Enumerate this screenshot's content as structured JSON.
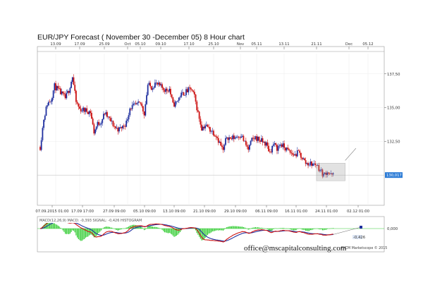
{
  "page": {
    "title": "EUR/JPY Forecast ( November 30 -December 05) 8 Hour chart"
  },
  "footer": {
    "watermark": "office@mscapitalconsulting.com",
    "vendor": "FXCM Marketscope © 2015"
  },
  "chart_data": [
    {
      "type": "candlestick",
      "title": "EUR/JPY Forecast ( November 30 -December 05) 8 Hour chart",
      "symbol": "EUR/JPY",
      "ylim": [
        128.2,
        139.0
      ],
      "price_ticks": [
        "137,50",
        "135,00",
        "132,50"
      ],
      "current_price": "130,017",
      "top_ticks": [
        "13.09",
        "17.09",
        "25.09",
        "Oct",
        "05.10",
        "09.10",
        "17.10",
        "25.10",
        "Nov",
        "05.11",
        "13.11",
        "21.11",
        "Dec",
        "05.12"
      ],
      "bottom_ticks": [
        "07.09.2015 01:00",
        "17.09 17:00",
        "27.09 09:00",
        "05.10 09:00",
        "13.10 09:00",
        "21.10 09:00",
        "29.10 09:00",
        "06.11 09:00",
        "16.11 01:00",
        "24.11 01:00",
        "02.12 01:00"
      ],
      "close_path": [
        {
          "date": "07.09",
          "close": 132.1
        },
        {
          "date": "08.09",
          "close": 134.2
        },
        {
          "date": "09.09",
          "close": 135.3
        },
        {
          "date": "10.09",
          "close": 135.6
        },
        {
          "date": "11.09",
          "close": 136.6
        },
        {
          "date": "14.09",
          "close": 135.7
        },
        {
          "date": "15.09",
          "close": 136.3
        },
        {
          "date": "16.09",
          "close": 137.3
        },
        {
          "date": "17.09",
          "close": 135.4
        },
        {
          "date": "18.09",
          "close": 134.9
        },
        {
          "date": "21.09",
          "close": 134.7
        },
        {
          "date": "22.09",
          "close": 133.2
        },
        {
          "date": "23.09",
          "close": 133.8
        },
        {
          "date": "24.09",
          "close": 134.0
        },
        {
          "date": "25.09",
          "close": 134.6
        },
        {
          "date": "28.09",
          "close": 133.5
        },
        {
          "date": "29.09",
          "close": 133.4
        },
        {
          "date": "30.09",
          "close": 133.6
        },
        {
          "date": "01.10",
          "close": 133.9
        },
        {
          "date": "02.10",
          "close": 135.0
        },
        {
          "date": "05.10",
          "close": 135.3
        },
        {
          "date": "06.10",
          "close": 134.6
        },
        {
          "date": "07.10",
          "close": 136.7
        },
        {
          "date": "08.10",
          "close": 136.5
        },
        {
          "date": "09.10",
          "close": 136.8
        },
        {
          "date": "12.10",
          "close": 136.3
        },
        {
          "date": "13.10",
          "close": 136.4
        },
        {
          "date": "14.10",
          "close": 135.2
        },
        {
          "date": "15.10",
          "close": 135.4
        },
        {
          "date": "16.10",
          "close": 135.9
        },
        {
          "date": "19.10",
          "close": 136.4
        },
        {
          "date": "20.10",
          "close": 135.8
        },
        {
          "date": "21.10",
          "close": 134.6
        },
        {
          "date": "22.10",
          "close": 133.5
        },
        {
          "date": "23.10",
          "close": 133.7
        },
        {
          "date": "26.10",
          "close": 133.0
        },
        {
          "date": "27.10",
          "close": 132.4
        },
        {
          "date": "28.10",
          "close": 131.8
        },
        {
          "date": "29.10",
          "close": 132.9
        },
        {
          "date": "30.10",
          "close": 132.7
        },
        {
          "date": "02.11",
          "close": 133.0
        },
        {
          "date": "03.11",
          "close": 132.4
        },
        {
          "date": "04.11",
          "close": 131.9
        },
        {
          "date": "05.11",
          "close": 132.6
        },
        {
          "date": "06.11",
          "close": 132.8
        },
        {
          "date": "09.11",
          "close": 132.3
        },
        {
          "date": "10.11",
          "close": 131.7
        },
        {
          "date": "11.11",
          "close": 132.3
        },
        {
          "date": "12.11",
          "close": 132.0
        },
        {
          "date": "13.11",
          "close": 132.3
        },
        {
          "date": "16.11",
          "close": 131.6
        },
        {
          "date": "17.11",
          "close": 131.5
        },
        {
          "date": "18.11",
          "close": 131.7
        },
        {
          "date": "19.11",
          "close": 131.3
        },
        {
          "date": "20.11",
          "close": 130.9
        },
        {
          "date": "23.11",
          "close": 130.8
        },
        {
          "date": "24.11",
          "close": 130.4
        },
        {
          "date": "25.11",
          "close": 130.0
        },
        {
          "date": "26.11",
          "close": 130.3
        },
        {
          "date": "27.11",
          "close": 130.0
        }
      ],
      "forecast_box": {
        "date_from": "23.11",
        "date_to": "01.12",
        "low": 129.6,
        "high": 130.9
      },
      "forecast_arrow": [
        {
          "date": "01.12",
          "price": 131.1
        },
        {
          "date": "04.12",
          "price": 132.0
        }
      ]
    },
    {
      "type": "macd",
      "legend": "MACD(12,26,9)  MACD: -0,393  SIGNAL: -0,426  HISTOGRAM",
      "series": [
        {
          "name": "MACD",
          "color": "#cc1111"
        },
        {
          "name": "SIGNAL",
          "color": "#1f2f9f"
        },
        {
          "name": "HISTOGRAM",
          "color": "#33cc33"
        }
      ],
      "zero_label": "0,000",
      "value_label": "-0,426"
    }
  ]
}
